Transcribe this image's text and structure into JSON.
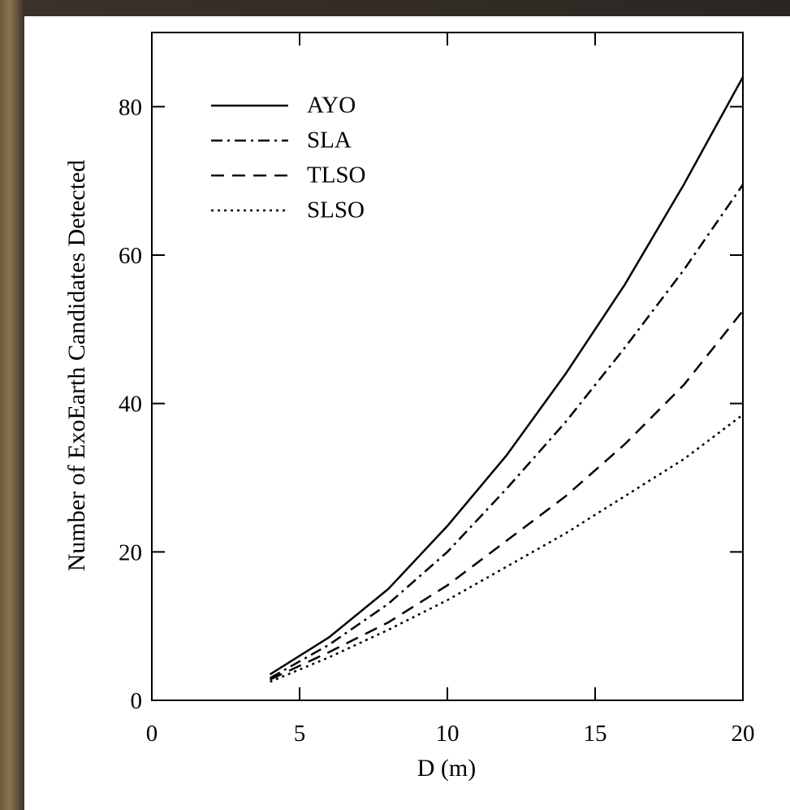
{
  "chart_data": {
    "type": "line",
    "x_label": "D (m)",
    "y_label": "Number of ExoEarth Candidates Detected",
    "x": [
      4,
      6,
      8,
      10,
      12,
      14,
      16,
      18,
      20
    ],
    "series": [
      {
        "name": "AYO",
        "color": "#000000",
        "dash": "solid",
        "values": [
          3.5,
          8.5,
          15,
          23.5,
          33,
          44,
          56,
          69.5,
          84
        ]
      },
      {
        "name": "SLA",
        "color": "#000000",
        "dash": "dashdot",
        "values": [
          3,
          7.5,
          13,
          20,
          28.5,
          37.5,
          47.5,
          58,
          69.5
        ]
      },
      {
        "name": "TLSO",
        "color": "#000000",
        "dash": "dashed",
        "values": [
          2.8,
          6.5,
          10.5,
          15.5,
          21.5,
          27.5,
          34.5,
          42.5,
          52.5
        ]
      },
      {
        "name": "SLSO",
        "color": "#000000",
        "dash": "dotted",
        "values": [
          2.5,
          5.8,
          9.5,
          13.5,
          18,
          22.5,
          27.5,
          32.5,
          38.5
        ]
      }
    ],
    "xlim": [
      0,
      20
    ],
    "ylim": [
      0,
      90
    ],
    "xticks": [
      0,
      5,
      10,
      15,
      20
    ],
    "yticks": [
      0,
      20,
      40,
      60,
      80
    ],
    "legend": "upper left"
  }
}
